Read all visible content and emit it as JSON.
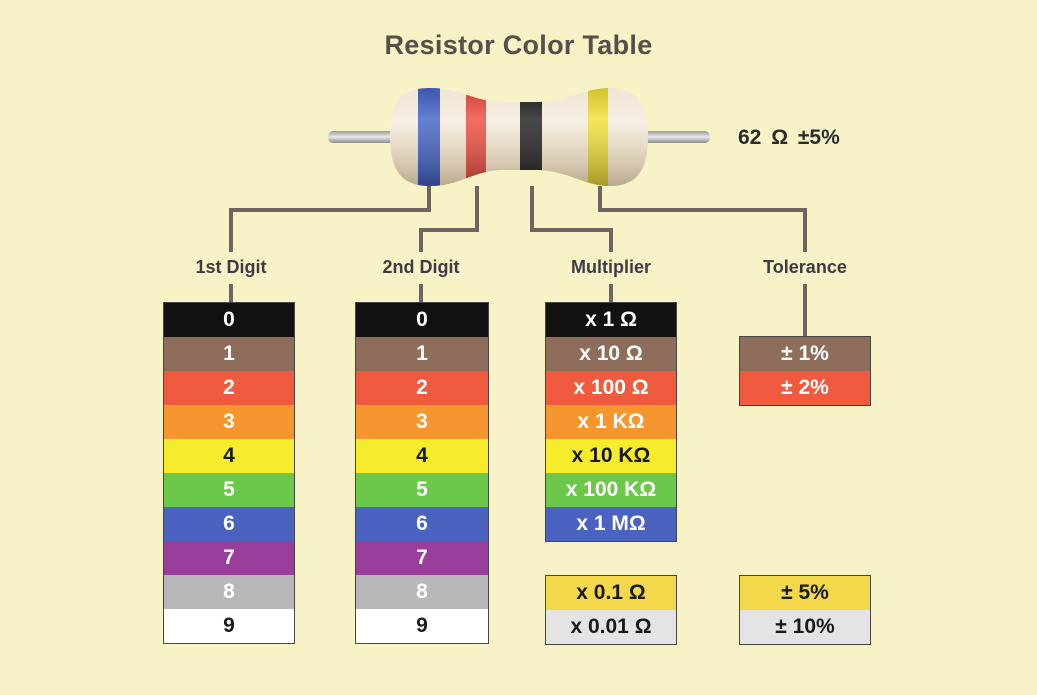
{
  "title": "Resistor Color Table",
  "example_value": "62 Ω  ±5%",
  "resistor": {
    "band_colors": [
      "#3f5fc8",
      "#f0483a",
      "#1a1a1a",
      "#f0e030"
    ]
  },
  "columns": {
    "first_digit": {
      "header": "1st Digit",
      "rows": [
        {
          "label": "0",
          "color": "#111111"
        },
        {
          "label": "1",
          "color": "#8e6e5a"
        },
        {
          "label": "2",
          "color": "#f05a3e"
        },
        {
          "label": "3",
          "color": "#f5962e"
        },
        {
          "label": "4",
          "color": "#f7ec2c"
        },
        {
          "label": "5",
          "color": "#6cc84a"
        },
        {
          "label": "6",
          "color": "#4a62c0"
        },
        {
          "label": "7",
          "color": "#9a3e9c"
        },
        {
          "label": "8",
          "color": "#b8b8b8"
        },
        {
          "label": "9",
          "color": "#ffffff"
        }
      ]
    },
    "second_digit": {
      "header": "2nd Digit",
      "rows": [
        {
          "label": "0",
          "color": "#111111"
        },
        {
          "label": "1",
          "color": "#8e6e5a"
        },
        {
          "label": "2",
          "color": "#f05a3e"
        },
        {
          "label": "3",
          "color": "#f5962e"
        },
        {
          "label": "4",
          "color": "#f7ec2c"
        },
        {
          "label": "5",
          "color": "#6cc84a"
        },
        {
          "label": "6",
          "color": "#4a62c0"
        },
        {
          "label": "7",
          "color": "#9a3e9c"
        },
        {
          "label": "8",
          "color": "#b8b8b8"
        },
        {
          "label": "9",
          "color": "#ffffff"
        }
      ]
    },
    "multiplier": {
      "header": "Multiplier",
      "rows": [
        {
          "label": "x 1 Ω",
          "color": "#111111"
        },
        {
          "label": "x 10 Ω",
          "color": "#8e6e5a"
        },
        {
          "label": "x 100 Ω",
          "color": "#f05a3e"
        },
        {
          "label": "x 1 KΩ",
          "color": "#f5962e"
        },
        {
          "label": "x 10 KΩ",
          "color": "#f7ec2c"
        },
        {
          "label": "x 100 KΩ",
          "color": "#6cc84a"
        },
        {
          "label": "x 1 MΩ",
          "color": "#4a62c0"
        }
      ],
      "extra_rows": [
        {
          "label": "x 0.1 Ω",
          "color": "#f2d84a"
        },
        {
          "label": "x 0.01 Ω",
          "color": "#e4e4e4"
        }
      ]
    },
    "tolerance": {
      "header": "Tolerance",
      "rows": [
        {
          "label": "± 1%",
          "color": "#8e6e5a"
        },
        {
          "label": "± 2%",
          "color": "#f05a3e"
        }
      ],
      "extra_rows": [
        {
          "label": "± 5%",
          "color": "#f2d84a"
        },
        {
          "label": "± 10%",
          "color": "#e4e4e4"
        }
      ]
    }
  }
}
